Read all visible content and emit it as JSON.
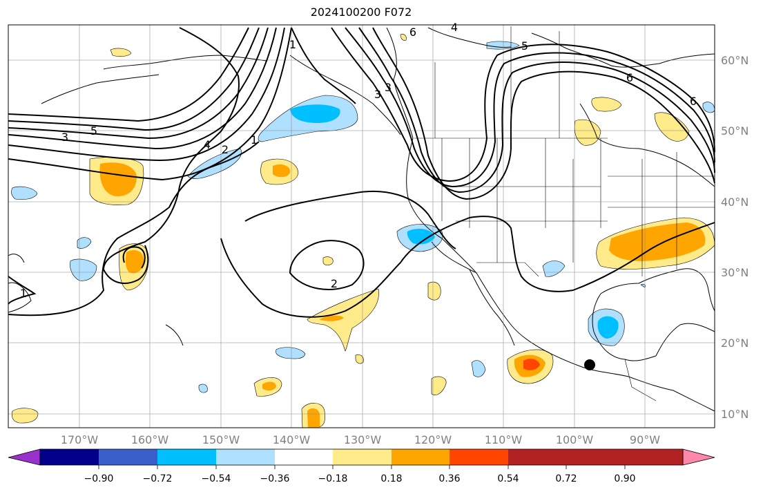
{
  "title": "2024100200 F072",
  "longitude_labels": [
    "170°W",
    "160°W",
    "150°W",
    "140°W",
    "130°W",
    "120°W",
    "110°W",
    "100°W",
    "90°W"
  ],
  "latitude_labels": [
    "60°N",
    "50°N",
    "40°N",
    "30°N",
    "20°N",
    "10°N"
  ],
  "colorbar": {
    "tick_labels": [
      "−0.90",
      "−0.72",
      "−0.54",
      "−0.36",
      "−0.18",
      "0.18",
      "0.36",
      "0.54",
      "0.72",
      "0.90"
    ],
    "colors": [
      "#9932cc",
      "#00008b",
      "#3a5fcd",
      "#00bfff",
      "#b0e0ff",
      "#ffffff",
      "#ffeb8a",
      "#ffa500",
      "#ff4500",
      "#b22222",
      "#ff88aa"
    ]
  },
  "contour_labels": [
    "6",
    "4",
    "5",
    "6",
    "6",
    "5",
    "3",
    "4",
    "2",
    "1",
    "1",
    "3",
    "3",
    "2",
    "1"
  ],
  "marker": "station-dot"
}
